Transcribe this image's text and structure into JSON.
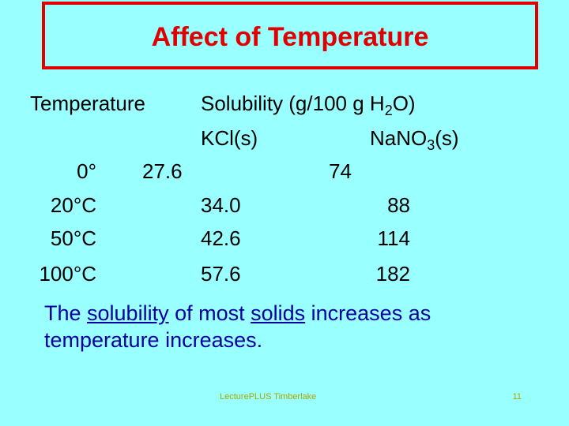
{
  "slide": {
    "title": "Affect of Temperature",
    "headers": {
      "temperature": "Temperature",
      "solubility_prefix": "Solubility (g/100 g H",
      "solubility_sub": "2",
      "solubility_suffix": "O)",
      "kcl": "KCl(s)",
      "nano3_prefix": "NaNO",
      "nano3_sub": "3",
      "nano3_suffix": "(s)"
    },
    "rows": [
      {
        "temp": "0°",
        "kcl": "27.6",
        "nano3": "74"
      },
      {
        "temp": "20°C",
        "kcl": "34.0",
        "nano3": "88"
      },
      {
        "temp": "50°C",
        "kcl": "42.6",
        "nano3": "114"
      },
      {
        "temp": "100°C",
        "kcl": "57.6",
        "nano3": "182"
      }
    ],
    "statement": {
      "part1": "The ",
      "term1": "solubility",
      "part2": " of most ",
      "term2": "solids",
      "part3": " increases as temperature increases."
    },
    "footer_text": "LecturePLUS Timberlake",
    "page_number": "11"
  }
}
